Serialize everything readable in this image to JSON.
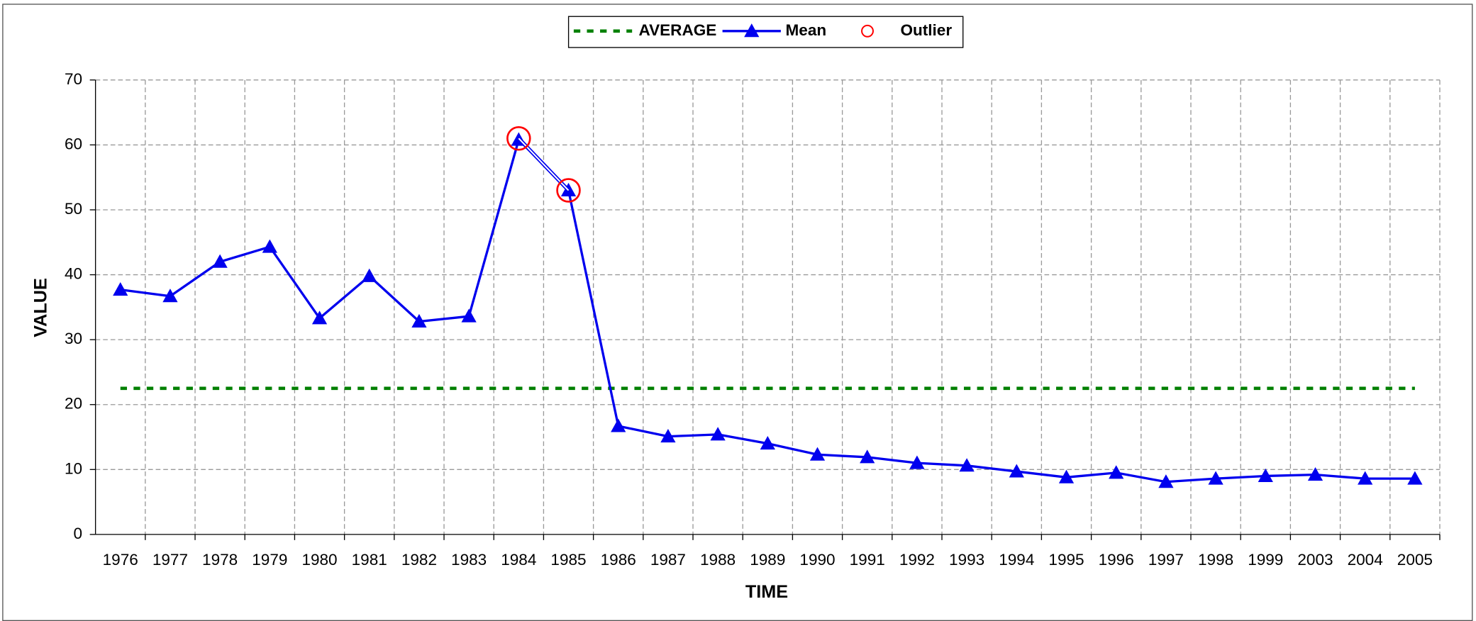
{
  "chart_data": {
    "type": "line",
    "x_label": "TIME",
    "y_label": "VALUE",
    "categories": [
      "1976",
      "1977",
      "1978",
      "1979",
      "1980",
      "1981",
      "1982",
      "1983",
      "1984",
      "1985",
      "1986",
      "1987",
      "1988",
      "1989",
      "1990",
      "1991",
      "1992",
      "1993",
      "1994",
      "1995",
      "1996",
      "1997",
      "1998",
      "1999",
      "2003",
      "2004",
      "2005"
    ],
    "series": [
      {
        "name": "AVERAGE",
        "color": "#008000",
        "line_style": "dashed",
        "marker": "none",
        "values": [
          22.5,
          22.5,
          22.5,
          22.5,
          22.5,
          22.5,
          22.5,
          22.5,
          22.5,
          22.5,
          22.5,
          22.5,
          22.5,
          22.5,
          22.5,
          22.5,
          22.5,
          22.5,
          22.5,
          22.5,
          22.5,
          22.5,
          22.5,
          22.5,
          22.5,
          22.5,
          22.5
        ]
      },
      {
        "name": "Mean",
        "color": "#0000ee",
        "line_style": "solid",
        "marker": "triangle",
        "values": [
          37.7,
          36.7,
          42,
          44.3,
          33.3,
          39.8,
          32.8,
          33.6,
          60.8,
          53,
          16.7,
          15.1,
          15.4,
          14,
          12.3,
          11.9,
          11,
          10.6,
          9.7,
          8.8,
          9.5,
          8.1,
          8.6,
          9,
          9.2,
          8.6,
          8.6
        ]
      },
      {
        "name": "Outlier",
        "color": "#ff0000",
        "line_style": "none",
        "marker": "circle",
        "values": [
          null,
          null,
          null,
          null,
          null,
          null,
          null,
          null,
          61,
          53,
          null,
          null,
          null,
          null,
          null,
          null,
          null,
          null,
          null,
          null,
          null,
          null,
          null,
          null,
          null,
          null,
          null
        ]
      }
    ],
    "ylim": [
      0,
      70
    ],
    "yticks": [
      0,
      10,
      20,
      30,
      40,
      50,
      60,
      70
    ],
    "grid": true,
    "legend": "top"
  }
}
